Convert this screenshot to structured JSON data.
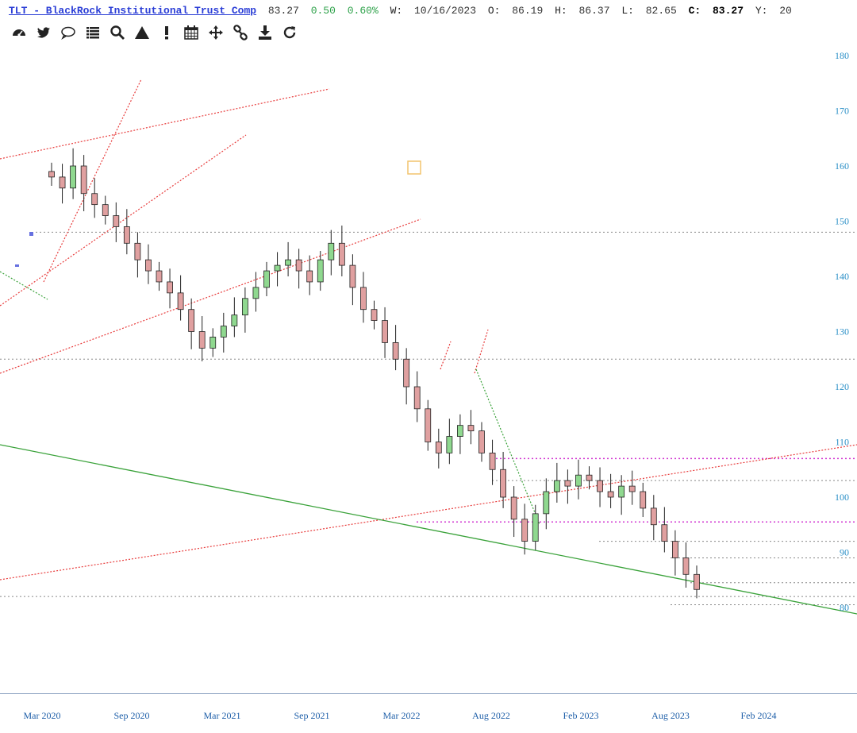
{
  "header": {
    "ticker": "TLT - BlackRock Institutional Trust Comp",
    "last": "83.27",
    "change": "0.50",
    "change_pct": "0.60%",
    "date_label": "W:",
    "date": "10/16/2023",
    "open_label": "O:",
    "open": "86.19",
    "high_label": "H:",
    "high": "86.37",
    "low_label": "L:",
    "low": "82.65",
    "close_label": "C:",
    "close": "83.27",
    "y_label": "Y:",
    "y_value": "20"
  },
  "toolbar": {
    "items": [
      {
        "name": "dashboard-icon",
        "label": "dashboard"
      },
      {
        "name": "twitter-icon",
        "label": "twitter"
      },
      {
        "name": "comment-icon",
        "label": "comment"
      },
      {
        "name": "list-icon",
        "label": "list"
      },
      {
        "name": "search-icon",
        "label": "search"
      },
      {
        "name": "triangle-icon",
        "label": "triangle"
      },
      {
        "name": "alert-icon",
        "label": "alert"
      },
      {
        "name": "calendar-icon",
        "label": "calendar"
      },
      {
        "name": "move-icon",
        "label": "move"
      },
      {
        "name": "link-icon",
        "label": "link"
      },
      {
        "name": "download-icon",
        "label": "download"
      },
      {
        "name": "refresh-icon",
        "label": "refresh"
      }
    ]
  },
  "colors": {
    "up": "#8fd88f",
    "down": "#e0a0a0",
    "wick": "#222222",
    "trend_red": "#e83c3c",
    "trend_green": "#3aa23a",
    "magenta": "#d23ad2",
    "grid_gray": "#888888",
    "axis_blue": "#2a8fc7"
  },
  "chart_data": {
    "type": "candlestick",
    "period": "weekly",
    "y_ticks": [
      80,
      90,
      100,
      110,
      120,
      130,
      140,
      150,
      160,
      170,
      180
    ],
    "ylim": [
      75,
      182
    ],
    "x_ticks": [
      "Mar 2020",
      "Sep 2020",
      "Mar 2021",
      "Sep 2021",
      "Mar 2022",
      "Aug 2022",
      "Feb 2023",
      "Aug 2023",
      "Feb 2024"
    ],
    "closes": [
      158,
      156,
      160,
      155,
      153,
      151,
      149,
      146,
      143,
      141,
      139,
      137,
      134,
      130,
      127,
      129,
      131,
      133,
      136,
      138,
      141,
      142,
      143,
      141,
      139,
      143,
      146,
      142,
      138,
      134,
      132,
      128,
      125,
      120,
      116,
      110,
      108,
      111,
      113,
      112,
      108,
      105,
      100,
      96,
      92,
      97,
      101,
      103,
      102,
      104,
      103,
      101,
      100,
      102,
      101,
      98,
      95,
      92,
      89,
      86,
      83.27
    ],
    "horizontal_levels": [
      148,
      125,
      103,
      92,
      89,
      84.5,
      82,
      80.5
    ],
    "magenta_levels": [
      107,
      95.5
    ],
    "last_close": 83.27
  }
}
